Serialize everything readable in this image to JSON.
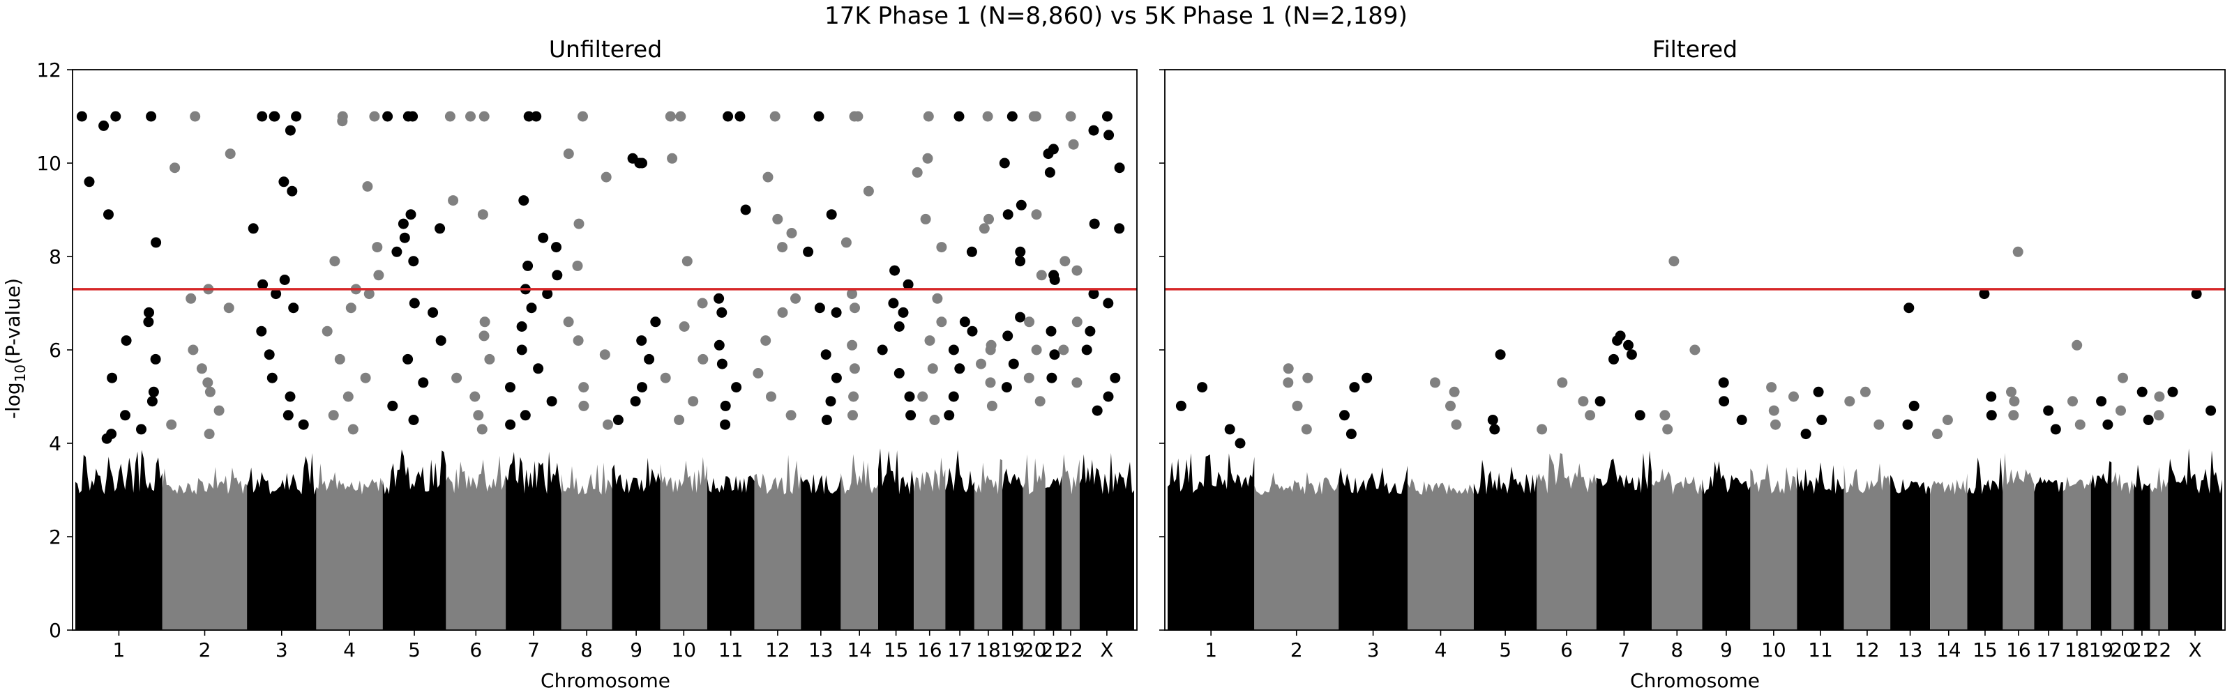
{
  "figure": {
    "title": "17K Phase 1 (N=8,860) vs 5K Phase 1 (N=2,189)"
  },
  "chart_data": [
    {
      "type": "scatter",
      "subtype": "manhattan",
      "title": "Unfiltered",
      "xlabel": "Chromosome",
      "ylabel": "-log10(P-value)",
      "ylim": [
        0,
        12
      ],
      "yticks": [
        0,
        2,
        4,
        6,
        8,
        10,
        12
      ],
      "chromosomes": [
        "1",
        "2",
        "3",
        "4",
        "5",
        "6",
        "7",
        "8",
        "9",
        "10",
        "11",
        "12",
        "13",
        "14",
        "15",
        "16",
        "17",
        "18",
        "19",
        "20",
        "21",
        "22",
        "X"
      ],
      "chromosome_colors": [
        "#000000",
        "#808080"
      ],
      "significance_threshold": 7.3,
      "threshold_color": "#d62728",
      "grid": false,
      "bulk": [
        {
          "chr": "1",
          "max": 3.9
        },
        {
          "chr": "2",
          "max": 3.5
        },
        {
          "chr": "3",
          "max": 3.8
        },
        {
          "chr": "4",
          "max": 3.6
        },
        {
          "chr": "5",
          "max": 4.1
        },
        {
          "chr": "6",
          "max": 3.9
        },
        {
          "chr": "7",
          "max": 4.2
        },
        {
          "chr": "8",
          "max": 3.6
        },
        {
          "chr": "9",
          "max": 3.7
        },
        {
          "chr": "10",
          "max": 3.8
        },
        {
          "chr": "11",
          "max": 3.7
        },
        {
          "chr": "12",
          "max": 3.8
        },
        {
          "chr": "13",
          "max": 3.7
        },
        {
          "chr": "14",
          "max": 3.8
        },
        {
          "chr": "15",
          "max": 3.9
        },
        {
          "chr": "16",
          "max": 3.9
        },
        {
          "chr": "17",
          "max": 4.0
        },
        {
          "chr": "18",
          "max": 3.8
        },
        {
          "chr": "19",
          "max": 3.9
        },
        {
          "chr": "20",
          "max": 3.9
        },
        {
          "chr": "21",
          "max": 3.8
        },
        {
          "chr": "22",
          "max": 3.9
        },
        {
          "chr": "X",
          "max": 4.0
        }
      ],
      "points": [
        {
          "chr": "1",
          "y": [
            8.9,
            10.8,
            11.0,
            11.0,
            8.3,
            9.6,
            11.0,
            6.6,
            6.8,
            6.2,
            5.8,
            5.4,
            5.1,
            4.9,
            4.6,
            4.3,
            4.2,
            4.1
          ]
        },
        {
          "chr": "2",
          "y": [
            11.0,
            10.2,
            9.9,
            7.3,
            7.1,
            6.9,
            6.0,
            5.6,
            5.3,
            5.1,
            4.7,
            4.4,
            4.2
          ]
        },
        {
          "chr": "3",
          "y": [
            11.0,
            11.0,
            11.0,
            11.0,
            10.7,
            9.6,
            9.4,
            8.6,
            7.4,
            7.5,
            7.2,
            6.9,
            6.4,
            5.9,
            5.4,
            5.0,
            4.6,
            4.4
          ]
        },
        {
          "chr": "4",
          "y": [
            11.0,
            11.0,
            10.9,
            9.5,
            8.2,
            7.9,
            7.6,
            7.3,
            7.2,
            6.9,
            6.4,
            5.8,
            5.4,
            5.0,
            4.6,
            4.3
          ]
        },
        {
          "chr": "5",
          "y": [
            11.0,
            11.0,
            11.0,
            8.9,
            8.7,
            8.6,
            8.4,
            8.1,
            7.9,
            7.0,
            6.8,
            6.2,
            5.8,
            5.3,
            4.8,
            4.5
          ]
        },
        {
          "chr": "6",
          "y": [
            11.0,
            11.0,
            11.0,
            9.2,
            8.9,
            6.6,
            6.3,
            5.8,
            5.4,
            5.0,
            4.6,
            4.3
          ]
        },
        {
          "chr": "7",
          "y": [
            11.0,
            11.0,
            9.2,
            8.4,
            8.2,
            7.8,
            7.6,
            7.3,
            7.2,
            6.9,
            6.5,
            6.0,
            5.6,
            5.2,
            4.9,
            4.6,
            4.4
          ]
        },
        {
          "chr": "8",
          "y": [
            11.0,
            10.2,
            9.7,
            8.7,
            7.8,
            6.6,
            6.2,
            5.9,
            5.2,
            4.8,
            4.4
          ]
        },
        {
          "chr": "9",
          "y": [
            10.1,
            10.0,
            10.0,
            6.6,
            6.2,
            5.8,
            5.2,
            4.9,
            4.5
          ]
        },
        {
          "chr": "10",
          "y": [
            11.0,
            11.0,
            10.1,
            7.9,
            7.0,
            6.5,
            5.8,
            5.4,
            4.9,
            4.5
          ]
        },
        {
          "chr": "11",
          "y": [
            11.0,
            11.0,
            9.0,
            7.1,
            6.8,
            6.1,
            5.7,
            5.2,
            4.8,
            4.4
          ]
        },
        {
          "chr": "12",
          "y": [
            11.0,
            9.7,
            8.8,
            8.5,
            8.2,
            7.1,
            6.8,
            6.2,
            5.5,
            5.0,
            4.6
          ]
        },
        {
          "chr": "13",
          "y": [
            11.0,
            8.9,
            8.1,
            6.9,
            6.8,
            5.9,
            5.4,
            4.9,
            4.5
          ]
        },
        {
          "chr": "14",
          "y": [
            11.0,
            11.0,
            9.4,
            8.3,
            7.2,
            6.9,
            6.1,
            5.6,
            5.0,
            4.6
          ]
        },
        {
          "chr": "15",
          "y": [
            7.7,
            7.4,
            7.0,
            6.8,
            6.5,
            6.0,
            5.5,
            5.0,
            4.6
          ]
        },
        {
          "chr": "16",
          "y": [
            11.0,
            10.1,
            9.8,
            8.8,
            8.2,
            7.1,
            6.6,
            6.2,
            5.6,
            5.0,
            4.5
          ]
        },
        {
          "chr": "17",
          "y": [
            11.0,
            8.1,
            6.6,
            6.4,
            6.0,
            5.6,
            5.0,
            4.6
          ]
        },
        {
          "chr": "18",
          "y": [
            11.0,
            8.8,
            8.6,
            6.1,
            6.0,
            5.7,
            5.3,
            4.8
          ]
        },
        {
          "chr": "19",
          "y": [
            11.0,
            10.0,
            9.1,
            8.9,
            8.1,
            7.9,
            6.7,
            6.3,
            5.7,
            5.2
          ]
        },
        {
          "chr": "20",
          "y": [
            11.0,
            11.0,
            8.9,
            7.6,
            6.6,
            6.0,
            5.4,
            4.9
          ]
        },
        {
          "chr": "21",
          "y": [
            10.3,
            10.2,
            9.8,
            7.6,
            7.5,
            6.4,
            5.9,
            5.4
          ]
        },
        {
          "chr": "22",
          "y": [
            11.0,
            10.4,
            7.7,
            7.9,
            6.6,
            6.0,
            5.3
          ]
        },
        {
          "chr": "X",
          "y": [
            11.0,
            10.7,
            10.6,
            9.9,
            8.7,
            8.6,
            7.2,
            7.0,
            6.4,
            6.0,
            5.4,
            5.0,
            4.7
          ]
        }
      ]
    },
    {
      "type": "scatter",
      "subtype": "manhattan",
      "title": "Filtered",
      "xlabel": "Chromosome",
      "ylabel": "",
      "ylim": [
        0,
        12
      ],
      "chromosomes": [
        "1",
        "2",
        "3",
        "4",
        "5",
        "6",
        "7",
        "8",
        "9",
        "10",
        "11",
        "12",
        "13",
        "14",
        "15",
        "16",
        "17",
        "18",
        "19",
        "20",
        "21",
        "22",
        "X"
      ],
      "chromosome_colors": [
        "#000000",
        "#808080"
      ],
      "significance_threshold": 7.3,
      "threshold_color": "#d62728",
      "grid": false,
      "bulk": [
        {
          "chr": "1",
          "max": 3.8
        },
        {
          "chr": "2",
          "max": 3.4
        },
        {
          "chr": "3",
          "max": 3.6
        },
        {
          "chr": "4",
          "max": 3.4
        },
        {
          "chr": "5",
          "max": 3.7
        },
        {
          "chr": "6",
          "max": 3.8
        },
        {
          "chr": "7",
          "max": 3.9
        },
        {
          "chr": "8",
          "max": 3.5
        },
        {
          "chr": "9",
          "max": 3.7
        },
        {
          "chr": "10",
          "max": 3.6
        },
        {
          "chr": "11",
          "max": 3.6
        },
        {
          "chr": "12",
          "max": 3.6
        },
        {
          "chr": "13",
          "max": 3.7
        },
        {
          "chr": "14",
          "max": 3.6
        },
        {
          "chr": "15",
          "max": 3.7
        },
        {
          "chr": "16",
          "max": 3.9
        },
        {
          "chr": "17",
          "max": 3.6
        },
        {
          "chr": "18",
          "max": 3.6
        },
        {
          "chr": "19",
          "max": 3.7
        },
        {
          "chr": "20",
          "max": 3.7
        },
        {
          "chr": "21",
          "max": 3.6
        },
        {
          "chr": "22",
          "max": 3.6
        },
        {
          "chr": "X",
          "max": 3.9
        }
      ],
      "points": [
        {
          "chr": "1",
          "y": [
            5.2,
            4.8,
            4.3,
            4.0
          ]
        },
        {
          "chr": "2",
          "y": [
            5.6,
            5.4,
            5.3,
            4.8,
            4.3
          ]
        },
        {
          "chr": "3",
          "y": [
            5.4,
            5.2,
            4.6,
            4.2
          ]
        },
        {
          "chr": "4",
          "y": [
            5.3,
            5.1,
            4.8,
            4.4
          ]
        },
        {
          "chr": "5",
          "y": [
            5.9,
            4.5,
            4.3
          ]
        },
        {
          "chr": "6",
          "y": [
            5.3,
            4.9,
            4.6,
            4.3
          ]
        },
        {
          "chr": "7",
          "y": [
            6.3,
            6.2,
            6.1,
            5.9,
            5.8,
            4.9,
            4.6
          ]
        },
        {
          "chr": "8",
          "y": [
            7.9,
            6.0,
            4.6,
            4.3
          ]
        },
        {
          "chr": "9",
          "y": [
            5.3,
            4.9,
            4.5
          ]
        },
        {
          "chr": "10",
          "y": [
            5.2,
            5.0,
            4.7,
            4.4
          ]
        },
        {
          "chr": "11",
          "y": [
            5.1,
            4.5,
            4.2
          ]
        },
        {
          "chr": "12",
          "y": [
            5.1,
            4.9,
            4.4
          ]
        },
        {
          "chr": "13",
          "y": [
            6.9,
            4.8,
            4.4
          ]
        },
        {
          "chr": "14",
          "y": [
            4.5,
            4.2
          ]
        },
        {
          "chr": "15",
          "y": [
            7.2,
            5.0,
            4.6
          ]
        },
        {
          "chr": "16",
          "y": [
            8.1,
            5.1,
            4.9,
            4.6
          ]
        },
        {
          "chr": "17",
          "y": [
            4.7,
            4.3
          ]
        },
        {
          "chr": "18",
          "y": [
            6.1,
            4.9,
            4.4
          ]
        },
        {
          "chr": "19",
          "y": [
            4.9,
            4.4
          ]
        },
        {
          "chr": "20",
          "y": [
            5.4,
            4.7
          ]
        },
        {
          "chr": "21",
          "y": [
            5.1,
            4.5
          ]
        },
        {
          "chr": "22",
          "y": [
            5.0,
            4.6
          ]
        },
        {
          "chr": "X",
          "y": [
            7.2,
            5.1,
            4.7
          ]
        }
      ]
    }
  ]
}
